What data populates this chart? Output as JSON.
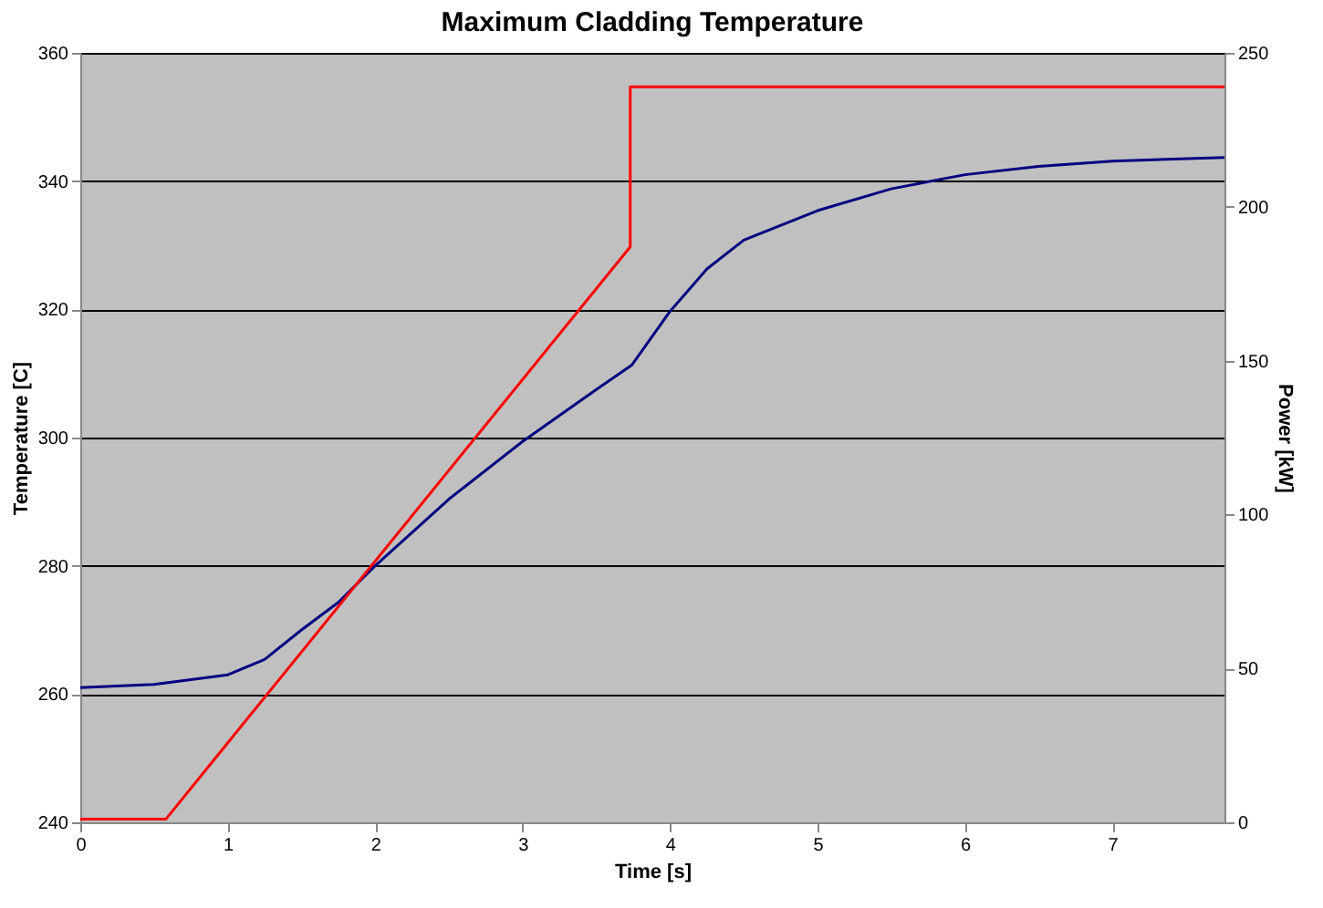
{
  "chart_data": {
    "type": "line",
    "title": "Maximum Cladding Temperature",
    "xlabel": "Time [s]",
    "ylabel": "Temperature [C]",
    "y2label": "Power [kW]",
    "xlim": [
      0,
      7.76
    ],
    "xticks": [
      0,
      1,
      2,
      3,
      4,
      5,
      6,
      7
    ],
    "ylim": [
      240,
      360
    ],
    "yticks": [
      240,
      260,
      280,
      300,
      320,
      340,
      360
    ],
    "y2lim": [
      0,
      250
    ],
    "y2ticks": [
      0,
      50,
      100,
      150,
      200,
      250
    ],
    "grid": "y",
    "marker": "none",
    "line_style": "solid",
    "series": [
      {
        "color": "#000080",
        "x": [
          0,
          0.5,
          1,
          1.25,
          1.5,
          1.75,
          2,
          2.5,
          3,
          3.5,
          3.74,
          4,
          4.25,
          4.5,
          5,
          5.5,
          6,
          6.5,
          7,
          7.76
        ],
        "values": [
          261,
          261.5,
          263,
          265.4,
          270,
          274.3,
          280,
          290.4,
          299.4,
          307.5,
          311.3,
          319.7,
          326.3,
          330.8,
          335.4,
          338.8,
          341,
          342.3,
          343.1,
          343.7
        ]
      },
      {
        "color": "#ff0000",
        "axis": "y2",
        "x": [
          0,
          0.58,
          3.73,
          3.73,
          7.76
        ],
        "values": [
          1,
          1,
          187,
          239,
          239
        ]
      }
    ]
  }
}
